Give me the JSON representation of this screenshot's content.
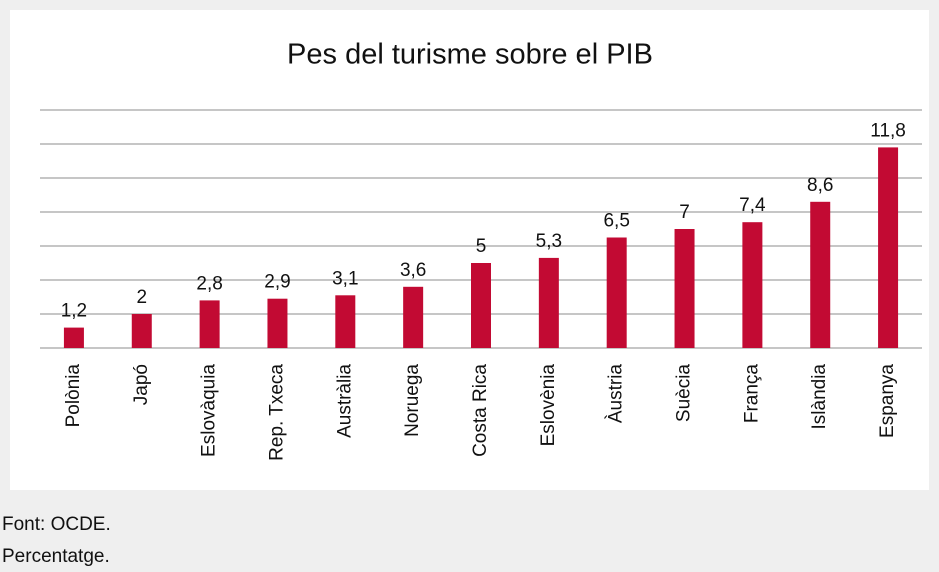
{
  "chart_data": {
    "type": "bar",
    "title": "Pes del turisme sobre el PIB",
    "categories": [
      "Polònia",
      "Japó",
      "Eslovàquia",
      "Rep. Txeca",
      "Austràlia",
      "Noruega",
      "Costa Rica",
      "Eslovènia",
      "Àustria",
      "Suècia",
      "França",
      "Islàndia",
      "Espanya"
    ],
    "values": [
      1.2,
      2,
      2.8,
      2.9,
      3.1,
      3.6,
      5,
      5.3,
      6.5,
      7,
      7.4,
      8.6,
      11.8
    ],
    "value_labels": [
      "1,2",
      "2",
      "2,8",
      "2,9",
      "3,1",
      "3,6",
      "5",
      "5,3",
      "6,5",
      "7",
      "7,4",
      "8,6",
      "11,8"
    ],
    "color": "#c20a33",
    "ylim": [
      0,
      14
    ],
    "yticks": [
      0,
      2,
      4,
      6,
      8,
      10,
      12,
      14
    ],
    "grid": true,
    "notes": [
      "Font: OCDE.",
      "Percentatge."
    ]
  }
}
